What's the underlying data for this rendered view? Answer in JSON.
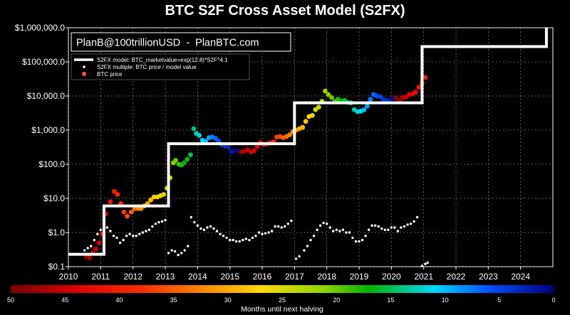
{
  "chart_data": {
    "type": "scatter",
    "title": "BTC S2F Cross Asset Model (S2FX)",
    "annotation": "PlanB@100trillionUSD  -  PlanBTC.com",
    "xlabel": "",
    "ylabel": "",
    "y_scale": "log",
    "ylim": [
      0.1,
      1000000
    ],
    "xlim": [
      2010.0,
      2025.0
    ],
    "grid": true,
    "legend_position": "top-left",
    "x_ticks": [
      "2010",
      "2011",
      "2012",
      "2013",
      "2014",
      "2015",
      "2016",
      "2017",
      "2018",
      "2019",
      "2020",
      "2021",
      "2022",
      "2023",
      "2024"
    ],
    "y_ticks": [
      "$0.1",
      "$1.0",
      "$10.0",
      "$100.0",
      "$1,000.0",
      "$10,000.0",
      "$100,000.0",
      "$1,000,000.0"
    ],
    "legend": [
      {
        "label": "S2FX model: BTC_marketvalue=exp(12.8)*S2F^4.1",
        "marker": "line",
        "color": "#ffffff"
      },
      {
        "label": "S2FX multiple: BTC price / model value",
        "marker": "dot",
        "color": "#ffffff"
      },
      {
        "label": "BTC price",
        "marker": "dot",
        "color": "#ff5a28"
      }
    ],
    "colorbar": {
      "label": "Months until next halving",
      "ticks": [
        "50",
        "45",
        "40",
        "35",
        "30",
        "25",
        "20",
        "15",
        "10",
        "5",
        "0"
      ],
      "range": [
        50,
        0
      ],
      "colormap": "rainbow"
    },
    "series": [
      {
        "name": "S2FX model: BTC_marketvalue=exp(12.8)*S2F^4.1",
        "kind": "step-line",
        "color": "#ffffff",
        "points": [
          [
            2010.0,
            0.23
          ],
          [
            2011.1,
            0.23
          ],
          [
            2011.1,
            6.0
          ],
          [
            2013.1,
            6.0
          ],
          [
            2013.1,
            400
          ],
          [
            2017.0,
            400
          ],
          [
            2017.0,
            6300
          ],
          [
            2020.95,
            6300
          ],
          [
            2020.95,
            280000
          ],
          [
            2024.8,
            280000
          ],
          [
            2024.8,
            1000000
          ]
        ]
      },
      {
        "name": "BTC price",
        "kind": "scatter",
        "points": [
          [
            2010.55,
            0.2,
            48
          ],
          [
            2010.65,
            0.18,
            47
          ],
          [
            2010.75,
            0.25,
            46
          ],
          [
            2010.85,
            0.33,
            45
          ],
          [
            2010.95,
            0.5,
            44
          ],
          [
            2011.05,
            0.9,
            43
          ],
          [
            2011.15,
            3.5,
            42
          ],
          [
            2011.3,
            8,
            41
          ],
          [
            2011.42,
            16,
            40
          ],
          [
            2011.52,
            13,
            39
          ],
          [
            2011.62,
            7,
            38
          ],
          [
            2011.72,
            4,
            37
          ],
          [
            2011.82,
            3,
            36
          ],
          [
            2011.95,
            4,
            35
          ],
          [
            2012.05,
            5,
            34
          ],
          [
            2012.15,
            5,
            33
          ],
          [
            2012.25,
            5,
            32
          ],
          [
            2012.35,
            6,
            31
          ],
          [
            2012.45,
            7,
            30
          ],
          [
            2012.55,
            9,
            29
          ],
          [
            2012.65,
            11,
            28
          ],
          [
            2012.75,
            11,
            27
          ],
          [
            2012.85,
            12,
            26
          ],
          [
            2012.95,
            13,
            25
          ],
          [
            2013.05,
            20,
            24
          ],
          [
            2013.15,
            40,
            23
          ],
          [
            2013.25,
            110,
            21
          ],
          [
            2013.32,
            130,
            20
          ],
          [
            2013.42,
            100,
            19
          ],
          [
            2013.5,
            95,
            18
          ],
          [
            2013.58,
            110,
            17
          ],
          [
            2013.68,
            140,
            16
          ],
          [
            2013.78,
            190,
            15
          ],
          [
            2013.88,
            1100,
            14
          ],
          [
            2013.96,
            800,
            13
          ],
          [
            2014.05,
            700,
            12
          ],
          [
            2014.15,
            500,
            11
          ],
          [
            2014.25,
            470,
            10
          ],
          [
            2014.35,
            600,
            9
          ],
          [
            2014.45,
            630,
            8
          ],
          [
            2014.55,
            580,
            7
          ],
          [
            2014.65,
            480,
            6
          ],
          [
            2014.75,
            380,
            5
          ],
          [
            2014.85,
            340,
            4
          ],
          [
            2014.95,
            320,
            3
          ],
          [
            2015.05,
            230,
            2
          ],
          [
            2015.15,
            250,
            1
          ],
          [
            2015.25,
            240,
            0
          ],
          [
            2015.35,
            230,
            48
          ],
          [
            2015.45,
            240,
            47
          ],
          [
            2015.55,
            270,
            46
          ],
          [
            2015.65,
            230,
            45
          ],
          [
            2015.75,
            250,
            44
          ],
          [
            2015.85,
            330,
            43
          ],
          [
            2015.95,
            430,
            42
          ],
          [
            2016.05,
            380,
            41
          ],
          [
            2016.15,
            400,
            40
          ],
          [
            2016.25,
            420,
            39
          ],
          [
            2016.35,
            450,
            38
          ],
          [
            2016.45,
            630,
            37
          ],
          [
            2016.55,
            650,
            36
          ],
          [
            2016.65,
            600,
            35
          ],
          [
            2016.75,
            650,
            34
          ],
          [
            2016.85,
            730,
            33
          ],
          [
            2016.95,
            900,
            32
          ],
          [
            2017.05,
            1000,
            31
          ],
          [
            2017.15,
            1100,
            30
          ],
          [
            2017.25,
            1200,
            29
          ],
          [
            2017.35,
            1800,
            28
          ],
          [
            2017.45,
            2500,
            27
          ],
          [
            2017.55,
            2700,
            26
          ],
          [
            2017.65,
            4000,
            25
          ],
          [
            2017.75,
            4700,
            24
          ],
          [
            2017.85,
            7000,
            23
          ],
          [
            2017.95,
            14000,
            22
          ],
          [
            2018.05,
            11000,
            21
          ],
          [
            2018.15,
            9000,
            20
          ],
          [
            2018.25,
            7000,
            19
          ],
          [
            2018.35,
            8000,
            18
          ],
          [
            2018.45,
            7000,
            17
          ],
          [
            2018.55,
            7500,
            16
          ],
          [
            2018.65,
            6500,
            15
          ],
          [
            2018.75,
            6300,
            14
          ],
          [
            2018.85,
            4000,
            13
          ],
          [
            2018.95,
            3500,
            12
          ],
          [
            2019.05,
            3600,
            11
          ],
          [
            2019.15,
            3900,
            10
          ],
          [
            2019.25,
            5000,
            9
          ],
          [
            2019.35,
            8000,
            8
          ],
          [
            2019.45,
            11000,
            7
          ],
          [
            2019.55,
            10000,
            6
          ],
          [
            2019.65,
            9500,
            5
          ],
          [
            2019.75,
            8000,
            4
          ],
          [
            2019.85,
            7500,
            3
          ],
          [
            2019.95,
            7200,
            2
          ],
          [
            2020.05,
            8500,
            1
          ],
          [
            2020.15,
            9000,
            48
          ],
          [
            2020.25,
            7000,
            47
          ],
          [
            2020.35,
            9000,
            46
          ],
          [
            2020.45,
            9300,
            45
          ],
          [
            2020.55,
            11000,
            44
          ],
          [
            2020.65,
            11500,
            43
          ],
          [
            2020.75,
            13000,
            42
          ],
          [
            2020.85,
            18000,
            41
          ],
          [
            2020.95,
            24000,
            40
          ],
          [
            2021.05,
            35000,
            39
          ]
        ]
      },
      {
        "name": "S2FX multiple: BTC price / model value",
        "kind": "scatter",
        "color": "#ffffff",
        "points": [
          [
            2010.5,
            0.3
          ],
          [
            2010.6,
            0.35
          ],
          [
            2010.7,
            0.4
          ],
          [
            2010.8,
            0.6
          ],
          [
            2010.9,
            0.9
          ],
          [
            2011.0,
            1.2
          ],
          [
            2011.1,
            2.5
          ],
          [
            2011.2,
            1.4
          ],
          [
            2011.3,
            1.1
          ],
          [
            2011.4,
            0.8
          ],
          [
            2011.5,
            0.7
          ],
          [
            2011.6,
            0.5
          ],
          [
            2011.7,
            0.6
          ],
          [
            2011.8,
            0.8
          ],
          [
            2011.9,
            0.9
          ],
          [
            2012.0,
            0.8
          ],
          [
            2012.1,
            0.8
          ],
          [
            2012.2,
            0.9
          ],
          [
            2012.3,
            1.0
          ],
          [
            2012.4,
            1.1
          ],
          [
            2012.5,
            1.2
          ],
          [
            2012.6,
            1.5
          ],
          [
            2012.7,
            1.8
          ],
          [
            2012.8,
            2.0
          ],
          [
            2012.9,
            2.1
          ],
          [
            2013.0,
            2.3
          ],
          [
            2013.1,
            0.25
          ],
          [
            2013.2,
            0.3
          ],
          [
            2013.3,
            0.28
          ],
          [
            2013.4,
            0.22
          ],
          [
            2013.5,
            0.25
          ],
          [
            2013.6,
            0.3
          ],
          [
            2013.7,
            0.4
          ],
          [
            2013.8,
            2.8
          ],
          [
            2013.9,
            2.0
          ],
          [
            2014.0,
            1.6
          ],
          [
            2014.1,
            1.3
          ],
          [
            2014.2,
            1.2
          ],
          [
            2014.3,
            1.4
          ],
          [
            2014.4,
            1.5
          ],
          [
            2014.5,
            1.3
          ],
          [
            2014.6,
            1.1
          ],
          [
            2014.7,
            0.9
          ],
          [
            2014.8,
            0.8
          ],
          [
            2014.9,
            0.7
          ],
          [
            2015.0,
            0.6
          ],
          [
            2015.1,
            0.6
          ],
          [
            2015.2,
            0.55
          ],
          [
            2015.3,
            0.55
          ],
          [
            2015.4,
            0.6
          ],
          [
            2015.5,
            0.65
          ],
          [
            2015.6,
            0.6
          ],
          [
            2015.7,
            0.7
          ],
          [
            2015.8,
            0.8
          ],
          [
            2015.9,
            1.0
          ],
          [
            2016.0,
            0.9
          ],
          [
            2016.1,
            0.95
          ],
          [
            2016.2,
            1.0
          ],
          [
            2016.3,
            1.1
          ],
          [
            2016.4,
            1.5
          ],
          [
            2016.5,
            1.5
          ],
          [
            2016.6,
            1.4
          ],
          [
            2016.7,
            1.5
          ],
          [
            2016.8,
            1.8
          ],
          [
            2016.9,
            2.2
          ],
          [
            2017.05,
            0.17
          ],
          [
            2017.15,
            0.2
          ],
          [
            2017.3,
            0.3
          ],
          [
            2017.4,
            0.4
          ],
          [
            2017.5,
            0.6
          ],
          [
            2017.6,
            0.8
          ],
          [
            2017.7,
            1.2
          ],
          [
            2017.8,
            1.6
          ],
          [
            2017.9,
            1.9
          ],
          [
            2018.0,
            1.8
          ],
          [
            2018.1,
            1.4
          ],
          [
            2018.2,
            1.1
          ],
          [
            2018.3,
            1.2
          ],
          [
            2018.4,
            1.1
          ],
          [
            2018.5,
            1.2
          ],
          [
            2018.6,
            1.0
          ],
          [
            2018.7,
            1.0
          ],
          [
            2018.8,
            0.7
          ],
          [
            2018.9,
            0.55
          ],
          [
            2019.0,
            0.55
          ],
          [
            2019.1,
            0.6
          ],
          [
            2019.2,
            0.8
          ],
          [
            2019.3,
            1.2
          ],
          [
            2019.4,
            1.6
          ],
          [
            2019.5,
            1.6
          ],
          [
            2019.6,
            1.5
          ],
          [
            2019.7,
            1.3
          ],
          [
            2019.8,
            1.2
          ],
          [
            2019.9,
            1.2
          ],
          [
            2020.0,
            1.4
          ],
          [
            2020.1,
            1.4
          ],
          [
            2020.2,
            1.1
          ],
          [
            2020.3,
            1.4
          ],
          [
            2020.4,
            1.5
          ],
          [
            2020.5,
            1.7
          ],
          [
            2020.6,
            1.8
          ],
          [
            2020.7,
            2.1
          ],
          [
            2020.8,
            2.8
          ],
          [
            2020.95,
            0.09
          ],
          [
            2021.05,
            0.12
          ],
          [
            2021.12,
            0.13
          ]
        ]
      }
    ]
  }
}
